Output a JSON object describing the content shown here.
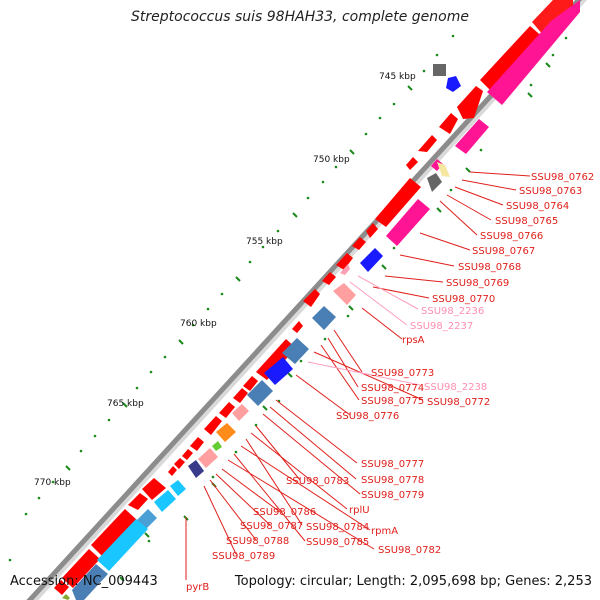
{
  "title": "Streptococcus suis 98HAH33, complete genome",
  "accession": "Accession: NC_009443",
  "summary": "Topology: circular; Length: 2,095,698 bp; Genes: 2,253",
  "scale_labels": [
    "745 kbp",
    "750 kbp",
    "755 kbp",
    "760 kbp",
    "765 kbp",
    "770 kbp"
  ],
  "gene_labels": {
    "SSU98_0762": "SSU98_0762",
    "SSU98_0763": "SSU98_0763",
    "SSU98_0764": "SSU98_0764",
    "SSU98_0765": "SSU98_0765",
    "SSU98_0766": "SSU98_0766",
    "SSU98_0767": "SSU98_0767",
    "SSU98_0768": "SSU98_0768",
    "SSU98_0769": "SSU98_0769",
    "SSU98_0770": "SSU98_0770",
    "SSU98_2236": "SSU98_2236",
    "SSU98_2237": "SSU98_2237",
    "rpsA": "rpsA",
    "SSU98_0773": "SSU98_0773",
    "SSU98_2238": "SSU98_2238",
    "SSU98_0774": "SSU98_0774",
    "SSU98_0772": "SSU98_0772",
    "SSU98_0775": "SSU98_0775",
    "SSU98_0776": "SSU98_0776",
    "SSU98_0777": "SSU98_0777",
    "SSU98_0778": "SSU98_0778",
    "SSU98_0779": "SSU98_0779",
    "SSU98_0783": "SSU98_0783",
    "rplU": "rplU",
    "SSU98_0786": "SSU98_0786",
    "SSU98_0787": "SSU98_0787",
    "SSU98_0784": "SSU98_0784",
    "rpmA": "rpmA",
    "SSU98_0788": "SSU98_0788",
    "SSU98_0785": "SSU98_0785",
    "SSU98_0782": "SSU98_0782",
    "SSU98_0789": "SSU98_0789",
    "pyrB": "pyrB"
  },
  "colors": {
    "backbone": "#8c8c8c",
    "cds": "#ff0000",
    "magenta": "#ff1493",
    "label_red": "#e0201c",
    "label_pink": "#ff8fb0",
    "tick_green": "#1a8a1a"
  }
}
